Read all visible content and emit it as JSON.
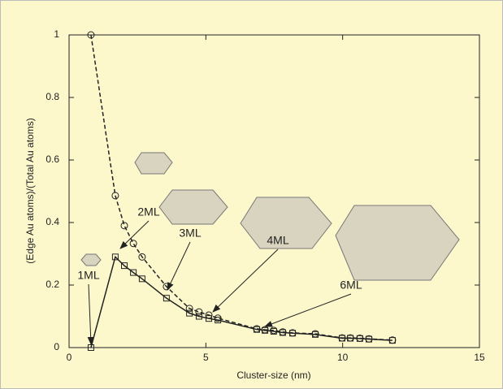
{
  "chart_data": {
    "type": "line",
    "xlabel": "Cluster-size (nm)",
    "ylabel": "(Edge Au atoms)/(Total Au atoms)",
    "xlim": [
      0,
      15
    ],
    "xticks": [
      0,
      5,
      10,
      15
    ],
    "ylim": [
      0,
      1
    ],
    "yticks": [
      0,
      0.2,
      0.4,
      0.6,
      0.8,
      1
    ],
    "x": [
      0.8,
      1.69,
      2.02,
      2.35,
      2.67,
      3.56,
      4.4,
      4.75,
      5.11,
      5.44,
      6.86,
      7.16,
      7.48,
      7.81,
      8.17,
      9.0,
      9.98,
      10.28,
      10.63,
      10.96,
      11.82
    ],
    "series": [
      {
        "color": "#222222",
        "dash": true,
        "marker": "circle",
        "values": [
          1.0,
          0.486,
          0.39,
          0.333,
          0.29,
          0.195,
          0.125,
          0.114,
          0.104,
          0.094,
          0.06,
          0.057,
          0.055,
          0.05,
          0.047,
          0.044,
          0.031,
          0.031,
          0.03,
          0.028,
          0.024
        ]
      },
      {
        "color": "#222222",
        "dash": false,
        "marker": "square",
        "values": [
          0,
          0.29,
          0.262,
          0.24,
          0.22,
          0.158,
          0.11,
          0.1,
          0.093,
          0.088,
          0.058,
          0.055,
          0.052,
          0.048,
          0.046,
          0.042,
          0.03,
          0.03,
          0.029,
          0.027,
          0.023
        ]
      }
    ],
    "annotations": [
      "1ML",
      "2ML",
      "3ML",
      "4ML",
      "6ML"
    ]
  }
}
